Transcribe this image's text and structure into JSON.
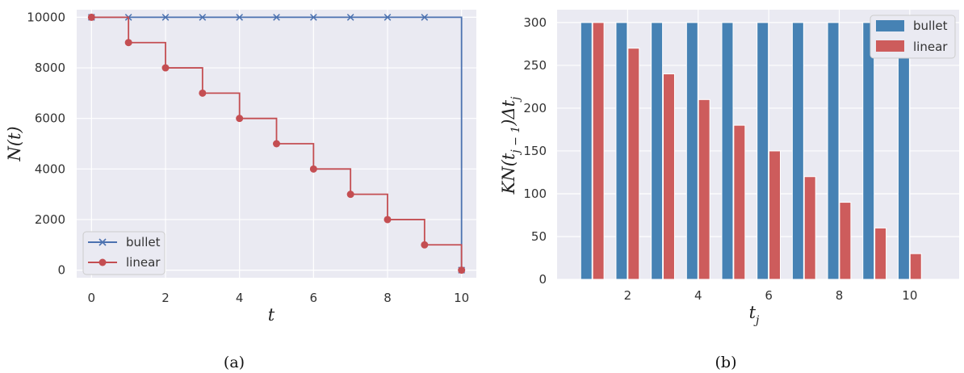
{
  "colors": {
    "bullet": "#4c72b0",
    "linear": "#c44e52",
    "bullet_bar": "#4682b4",
    "linear_bar": "#cd5c5c",
    "panel_bg": "#eaeaf2",
    "grid": "#ffffff"
  },
  "chart_data": [
    {
      "type": "line",
      "panel": "a",
      "caption": "(a)",
      "xlabel": "t",
      "ylabel": "N(t)",
      "xlim": [
        -0.4,
        10.4
      ],
      "ylim": [
        -300,
        10300
      ],
      "xticks": [
        0,
        2,
        4,
        6,
        8,
        10
      ],
      "yticks": [
        0,
        2000,
        4000,
        6000,
        8000,
        10000
      ],
      "grid": true,
      "legend_position": "lower-left",
      "series": [
        {
          "name": "bullet",
          "marker": "x",
          "step": "post",
          "x": [
            0,
            1,
            2,
            3,
            4,
            5,
            6,
            7,
            8,
            9,
            10
          ],
          "y": [
            10000,
            10000,
            10000,
            10000,
            10000,
            10000,
            10000,
            10000,
            10000,
            10000,
            0
          ]
        },
        {
          "name": "linear",
          "marker": "o",
          "step": "post",
          "x": [
            0,
            1,
            2,
            3,
            4,
            5,
            6,
            7,
            8,
            9,
            10
          ],
          "y": [
            10000,
            9000,
            8000,
            7000,
            6000,
            5000,
            4000,
            3000,
            2000,
            1000,
            0
          ]
        }
      ]
    },
    {
      "type": "bar",
      "panel": "b",
      "caption": "(b)",
      "xlabel": "t_j",
      "ylabel": "KN(t_{j-1})Δt_j",
      "xlim": [
        0.0,
        11.4
      ],
      "ylim": [
        0,
        315
      ],
      "xticks": [
        2,
        4,
        6,
        8,
        10
      ],
      "yticks": [
        0,
        50,
        100,
        150,
        200,
        250,
        300
      ],
      "grid": true,
      "legend_position": "top-right",
      "categories": [
        1,
        2,
        3,
        4,
        5,
        6,
        7,
        8,
        9,
        10
      ],
      "series": [
        {
          "name": "bullet",
          "values": [
            300,
            300,
            300,
            300,
            300,
            300,
            300,
            300,
            300,
            300
          ]
        },
        {
          "name": "linear",
          "values": [
            300,
            270,
            240,
            210,
            180,
            150,
            120,
            90,
            60,
            30
          ]
        }
      ]
    }
  ]
}
